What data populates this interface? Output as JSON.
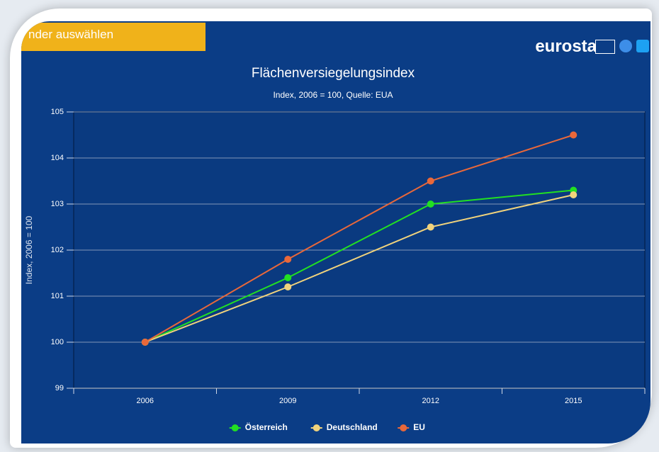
{
  "ui": {
    "button": "nder auswählen",
    "logo": "eurostat"
  },
  "chart_data": {
    "type": "line",
    "title": "Flächenversiegelungsindex",
    "subtitle": "Index, 2006 = 100, Quelle: EUA",
    "y_label": "Index, 2006 = 100",
    "categories": [
      "2006",
      "2009",
      "2012",
      "2015"
    ],
    "series": [
      {
        "name": "Österreich",
        "color": "#22e022",
        "values": [
          100,
          101.4,
          103.0,
          103.3
        ]
      },
      {
        "name": "Deutschland",
        "color": "#f1d37c",
        "values": [
          100,
          101.2,
          102.5,
          103.2
        ]
      },
      {
        "name": "EU",
        "color": "#e9683a",
        "values": [
          100,
          101.8,
          103.5,
          104.5
        ]
      }
    ],
    "ylim": [
      99,
      105
    ],
    "yticks": [
      99,
      100,
      101,
      102,
      103,
      104,
      105
    ],
    "grid": true,
    "legend": "bottom"
  }
}
